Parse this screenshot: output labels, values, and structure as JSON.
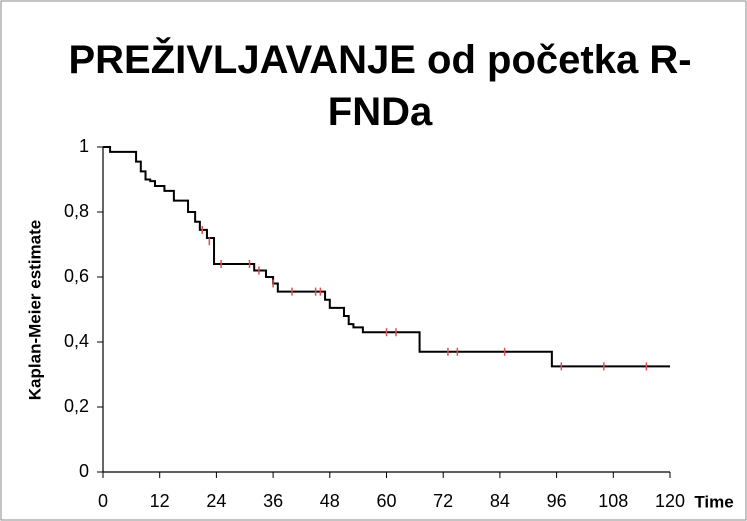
{
  "chart_data": {
    "type": "kaplan-meier",
    "title": "PREŽIVLJAVANJE od početka R-FNDa",
    "x_label": "Time",
    "y_label": "Kaplan-Meier estimate",
    "color": "#000000",
    "x": [
      0,
      1.5,
      7,
      8,
      9,
      10,
      11,
      13,
      15,
      18,
      19.5,
      20.5,
      22,
      23.5,
      32,
      34.5,
      36,
      37,
      47,
      48,
      51,
      52,
      53,
      55,
      67,
      95,
      120
    ],
    "values": [
      1,
      0.985,
      0.955,
      0.925,
      0.9,
      0.895,
      0.88,
      0.865,
      0.835,
      0.8,
      0.77,
      0.745,
      0.72,
      0.64,
      0.62,
      0.6,
      0.58,
      0.555,
      0.53,
      0.505,
      0.48,
      0.455,
      0.445,
      0.43,
      0.37,
      0.325,
      0.325
    ],
    "censored": {
      "color": "#e05050",
      "x": [
        21,
        22.5,
        25,
        31,
        33,
        36,
        40,
        45,
        46,
        60,
        62,
        73,
        75,
        85,
        97,
        106,
        115
      ],
      "values": [
        0.745,
        0.71,
        0.64,
        0.64,
        0.62,
        0.58,
        0.555,
        0.555,
        0.555,
        0.43,
        0.43,
        0.37,
        0.37,
        0.37,
        0.325,
        0.325,
        0.325
      ]
    },
    "xlim": [
      0,
      120
    ],
    "xticks": [
      0,
      12,
      24,
      36,
      48,
      60,
      72,
      84,
      96,
      108,
      120
    ],
    "ylim": [
      0,
      1
    ],
    "yticks": [
      0,
      {
        "value": 0.2,
        "label": "0,2"
      },
      {
        "value": 0.4,
        "label": "0,4"
      },
      {
        "value": 0.6,
        "label": "0,6"
      },
      {
        "value": 0.8,
        "label": "0,8"
      },
      1
    ]
  }
}
